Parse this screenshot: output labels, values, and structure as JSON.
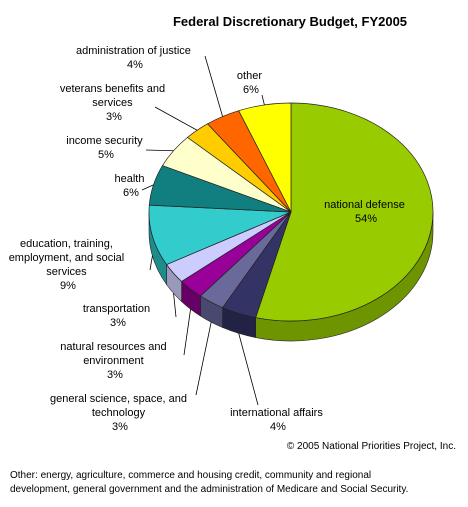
{
  "chart_data": {
    "type": "pie",
    "title": "Federal Discretionary Budget, FY2005",
    "slices": [
      {
        "label": "national defense",
        "value": 54,
        "pct_label": "54%",
        "color": "#99cc00",
        "side": "#6e9400"
      },
      {
        "label": "international affairs",
        "value": 4,
        "pct_label": "4%",
        "color": "#333366",
        "side": "#222244"
      },
      {
        "label": "general science, space, and technology",
        "value": 3,
        "pct_label": "3%",
        "color": "#6a6a9a",
        "side": "#494970"
      },
      {
        "label": "natural resources and environment",
        "value": 3,
        "pct_label": "3%",
        "color": "#990099",
        "side": "#660066"
      },
      {
        "label": "transportation",
        "value": 3,
        "pct_label": "3%",
        "color": "#ccccff",
        "side": "#9999bb"
      },
      {
        "label": "education, training, employment, and social services",
        "value": 9,
        "pct_label": "9%",
        "color": "#33cccc",
        "side": "#1f8c8c"
      },
      {
        "label": "health",
        "value": 6,
        "pct_label": "6%",
        "color": "#117f7f",
        "side": "#0a5555"
      },
      {
        "label": "income security",
        "value": 5,
        "pct_label": "5%",
        "color": "#ffffcc",
        "side": "#cccc99"
      },
      {
        "label": "veterans benefits and services",
        "value": 3,
        "pct_label": "3%",
        "color": "#ffcc00",
        "side": "#b38f00"
      },
      {
        "label": "administration of justice",
        "value": 4,
        "pct_label": "4%",
        "color": "#ff6600",
        "side": "#b34700"
      },
      {
        "label": "other",
        "value": 6,
        "pct_label": "6%",
        "color": "#ffff00",
        "side": "#b3b300"
      }
    ]
  },
  "labels": {
    "national_defense": [
      "national defense",
      "54%"
    ],
    "international_affairs": [
      "international affairs",
      "4%"
    ],
    "general_science": [
      "general science, space, and",
      "technology",
      "3%"
    ],
    "natural_resources": [
      "natural resources and",
      "environment",
      "3%"
    ],
    "transportation": [
      "transportation",
      "3%"
    ],
    "education": [
      "education, training,",
      "employment, and social",
      "services",
      "9%"
    ],
    "health": [
      "health",
      "6%"
    ],
    "income_security": [
      "income security",
      "5%"
    ],
    "veterans": [
      "veterans benefits and",
      "services",
      "3%"
    ],
    "justice": [
      "administration of justice",
      "4%"
    ],
    "other": [
      "other",
      "6%"
    ]
  },
  "copyright": "© 2005 National Priorities Project, Inc.",
  "footnote": [
    "Other: energy, agriculture, commerce and housing credit, community and regional",
    "development, general government and the administration of Medicare and Social Security."
  ]
}
